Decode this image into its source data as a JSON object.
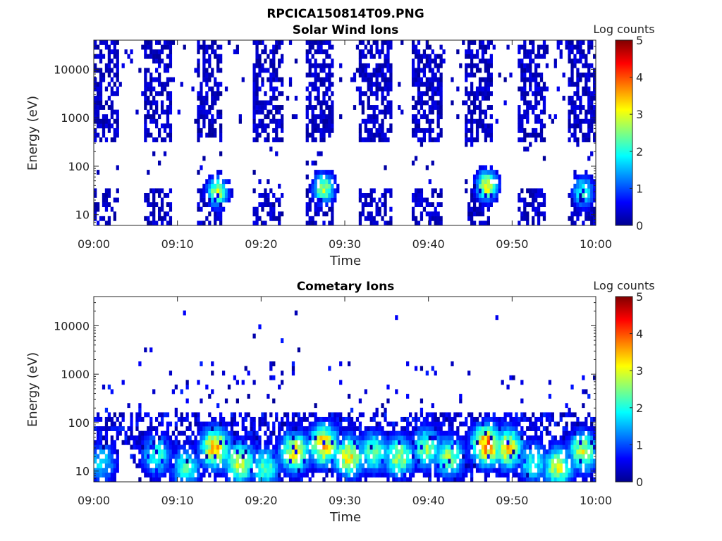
{
  "figure": {
    "title": "RPCICA150814T09.PNG"
  },
  "colors": {
    "colormap": [
      "#00008f",
      "#0000ff",
      "#0080ff",
      "#00ffff",
      "#80ff80",
      "#ffff00",
      "#ff8000",
      "#ff0000",
      "#800000"
    ],
    "axis": "#262626",
    "background": "#ffffff"
  },
  "chart_data": [
    {
      "type": "heatmap",
      "title": "Solar Wind Ions",
      "xlabel": "Time",
      "ylabel": "Energy (eV)",
      "x_ticks": [
        "09:00",
        "09:10",
        "09:20",
        "09:30",
        "09:40",
        "09:50",
        "10:00"
      ],
      "xlim_minutes": [
        0,
        60
      ],
      "y_scale": "log",
      "ylim": [
        6,
        40000
      ],
      "y_ticks": [
        10,
        100,
        1000,
        10000
      ],
      "y_tick_labels": [
        "10",
        "100",
        "1000",
        "10000"
      ],
      "colorbar": {
        "label": "Log counts",
        "range": [
          0,
          5
        ],
        "ticks": [
          "0",
          "1",
          "2",
          "3",
          "4",
          "5"
        ]
      },
      "dense_bursts_minutes": [
        [
          0,
          3
        ],
        [
          6,
          9.3
        ],
        [
          12.5,
          15.5
        ],
        [
          19,
          22.5
        ],
        [
          25.5,
          28.8
        ],
        [
          31.8,
          35.7
        ],
        [
          38,
          41.6
        ],
        [
          44.3,
          47.8
        ],
        [
          50.8,
          54
        ],
        [
          56.8,
          60
        ]
      ],
      "peaks": [
        {
          "t_minutes": 14.8,
          "energy_eV": 30,
          "log_counts": 3.3
        },
        {
          "t_minutes": 27.5,
          "energy_eV": 35,
          "log_counts": 3.2
        },
        {
          "t_minutes": 47.0,
          "energy_eV": 40,
          "log_counts": 3.6
        },
        {
          "t_minutes": 58.5,
          "energy_eV": 30,
          "log_counts": 2.6
        }
      ]
    },
    {
      "type": "heatmap",
      "title": "Cometary Ions",
      "xlabel": "Time",
      "ylabel": "Energy (eV)",
      "x_ticks": [
        "09:00",
        "09:10",
        "09:20",
        "09:30",
        "09:40",
        "09:50",
        "10:00"
      ],
      "xlim_minutes": [
        0,
        60
      ],
      "y_scale": "log",
      "ylim": [
        6,
        40000
      ],
      "y_ticks": [
        10,
        100,
        1000,
        10000
      ],
      "y_tick_labels": [
        "10",
        "100",
        "1000",
        "10000"
      ],
      "colorbar": {
        "label": "Log counts",
        "range": [
          0,
          5
        ],
        "ticks": [
          "0",
          "1",
          "2",
          "3",
          "4",
          "5"
        ]
      },
      "peaks": [
        {
          "t_minutes": 1,
          "energy_eV": 15,
          "log_counts": 2.0
        },
        {
          "t_minutes": 7.5,
          "energy_eV": 22,
          "log_counts": 2.5
        },
        {
          "t_minutes": 11,
          "energy_eV": 12,
          "log_counts": 2.5
        },
        {
          "t_minutes": 14.5,
          "energy_eV": 30,
          "log_counts": 4.0
        },
        {
          "t_minutes": 17.5,
          "energy_eV": 15,
          "log_counts": 3.5
        },
        {
          "t_minutes": 20.5,
          "energy_eV": 12,
          "log_counts": 2.6
        },
        {
          "t_minutes": 24,
          "energy_eV": 25,
          "log_counts": 3.6
        },
        {
          "t_minutes": 27.5,
          "energy_eV": 35,
          "log_counts": 4.1
        },
        {
          "t_minutes": 30.5,
          "energy_eV": 20,
          "log_counts": 3.7
        },
        {
          "t_minutes": 33.5,
          "energy_eV": 25,
          "log_counts": 2.8
        },
        {
          "t_minutes": 36.5,
          "energy_eV": 20,
          "log_counts": 3.2
        },
        {
          "t_minutes": 39.8,
          "energy_eV": 30,
          "log_counts": 3.0
        },
        {
          "t_minutes": 42.5,
          "energy_eV": 20,
          "log_counts": 3.0
        },
        {
          "t_minutes": 47,
          "energy_eV": 35,
          "log_counts": 4.5
        },
        {
          "t_minutes": 49.5,
          "energy_eV": 30,
          "log_counts": 3.8
        },
        {
          "t_minutes": 52.5,
          "energy_eV": 15,
          "log_counts": 2.5
        },
        {
          "t_minutes": 55.5,
          "energy_eV": 12,
          "log_counts": 3.3
        },
        {
          "t_minutes": 58.5,
          "energy_eV": 25,
          "log_counts": 3.3
        }
      ]
    }
  ]
}
